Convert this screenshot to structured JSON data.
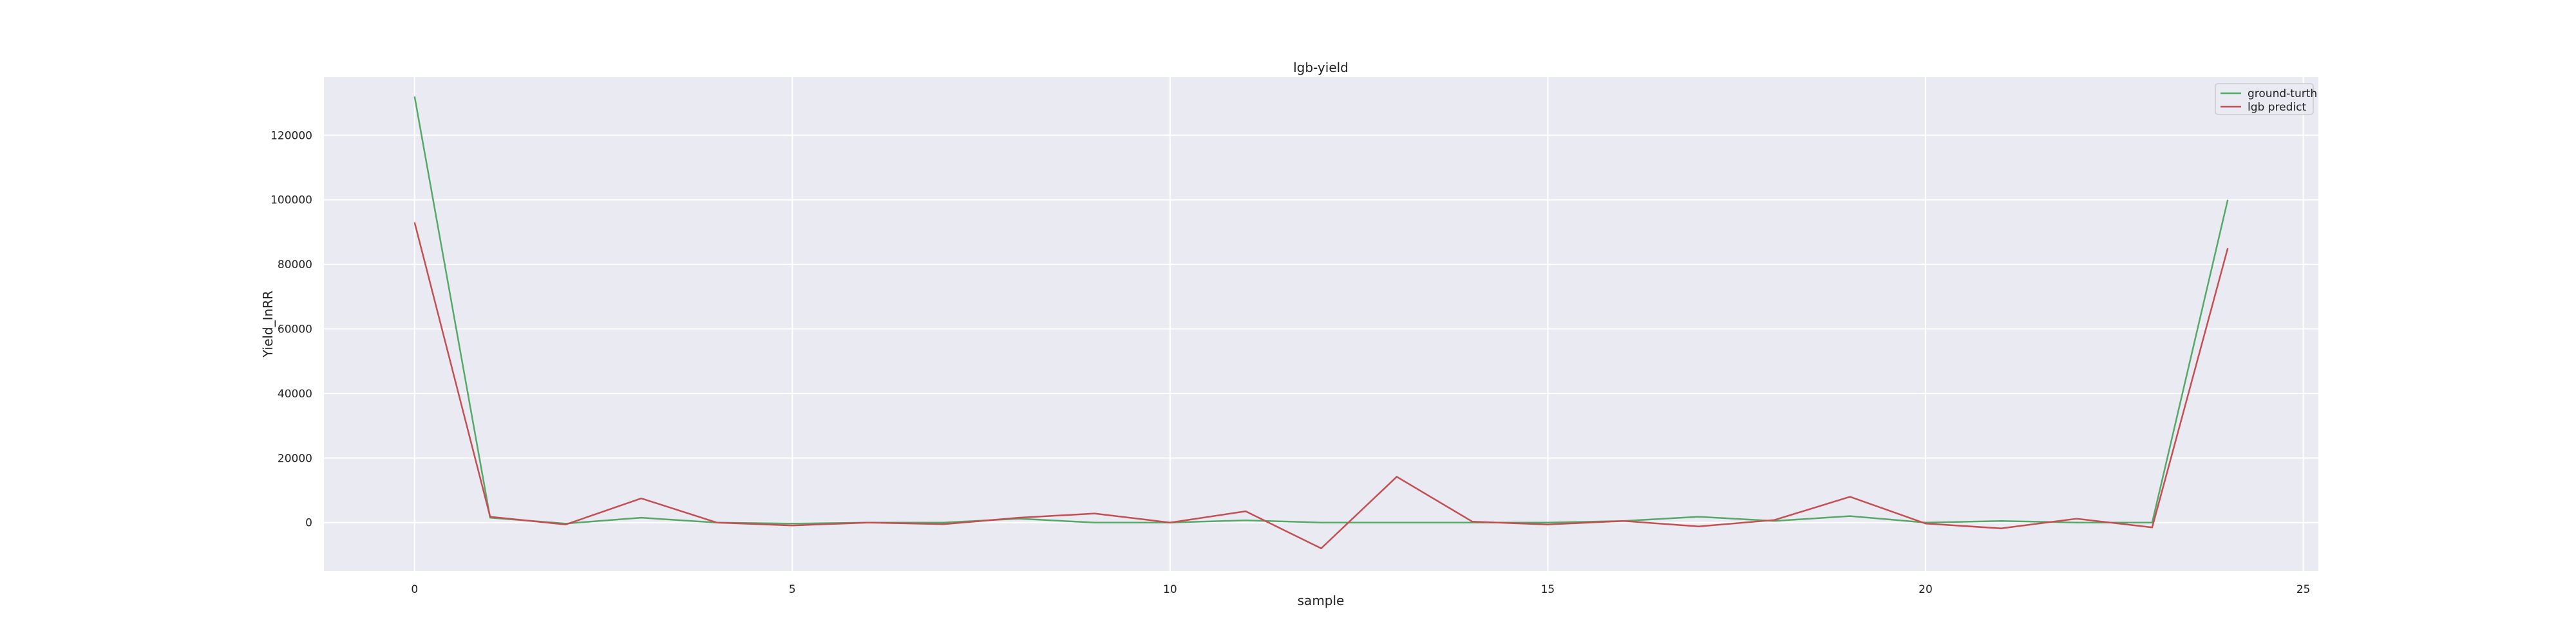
{
  "chart_data": {
    "type": "line",
    "title": "lgb-yield",
    "xlabel": "sample",
    "ylabel": "Yield_InRR",
    "xlim": [
      -1.2,
      25.2
    ],
    "ylim": [
      -15000,
      138000
    ],
    "xticks": [
      0,
      5,
      10,
      15,
      20,
      25
    ],
    "yticks": [
      0,
      20000,
      40000,
      60000,
      80000,
      100000,
      120000
    ],
    "grid": true,
    "legend_position": "top-right",
    "x": [
      0,
      1,
      2,
      3,
      4,
      5,
      6,
      7,
      8,
      9,
      10,
      11,
      12,
      13,
      14,
      15,
      16,
      17,
      18,
      19,
      20,
      21,
      22,
      23,
      24
    ],
    "series": [
      {
        "name": "ground-turth",
        "color": "#55a868",
        "values": [
          132000,
          1500,
          -300,
          1500,
          0,
          -300,
          0,
          0,
          1200,
          0,
          0,
          700,
          0,
          0,
          0,
          0,
          500,
          1800,
          500,
          2000,
          0,
          500,
          0,
          0,
          100000
        ]
      },
      {
        "name": "lgb predict",
        "color": "#c44e52",
        "values": [
          93000,
          1800,
          -600,
          7500,
          0,
          -900,
          0,
          -500,
          1500,
          2800,
          0,
          3500,
          -8000,
          14200,
          300,
          -600,
          500,
          -1200,
          800,
          8000,
          -300,
          -1800,
          1200,
          -1500,
          85000
        ]
      }
    ]
  }
}
